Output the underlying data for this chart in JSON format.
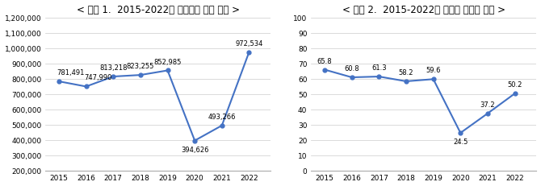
{
  "title1": "< 그림 1.  2015-2022년 공연시장 규모 추이 >",
  "title2": "< 그림 2.  2015-2022년 공연장 가동률 추이 >",
  "years": [
    2015,
    2016,
    2017,
    2018,
    2019,
    2020,
    2021,
    2022
  ],
  "values1": [
    781491,
    747990,
    813218,
    823255,
    852985,
    394626,
    493266,
    972534
  ],
  "labels1": [
    "781,491",
    "747,990",
    "813,218",
    "823,255",
    "852,985",
    "394,626",
    "493,266",
    "972,534"
  ],
  "values2": [
    65.8,
    60.8,
    61.3,
    58.2,
    59.6,
    24.5,
    37.2,
    50.2
  ],
  "labels2": [
    "65.8",
    "60.8",
    "61.3",
    "58.2",
    "59.6",
    "24.5",
    "37.2",
    "50.2"
  ],
  "line_color": "#4472C4",
  "marker": "o",
  "markersize": 3.5,
  "linewidth": 1.5,
  "ylim1": [
    200000,
    1200000
  ],
  "yticks1": [
    200000,
    300000,
    400000,
    500000,
    600000,
    700000,
    800000,
    900000,
    1000000,
    1100000,
    1200000
  ],
  "ytick_labels1": [
    "200,000",
    "300,000",
    "400,000",
    "500,000",
    "600,000",
    "700,000",
    "800,000",
    "900,000",
    "1,000,000",
    "1,100,000",
    "1,200,000"
  ],
  "ylim2": [
    0,
    100
  ],
  "yticks2": [
    0,
    10,
    20,
    30,
    40,
    50,
    60,
    70,
    80,
    90,
    100
  ],
  "bg_color": "#ffffff",
  "grid_color": "#cccccc",
  "title_fontsize": 8.5,
  "label_fontsize": 6.0,
  "tick_fontsize": 6.5
}
